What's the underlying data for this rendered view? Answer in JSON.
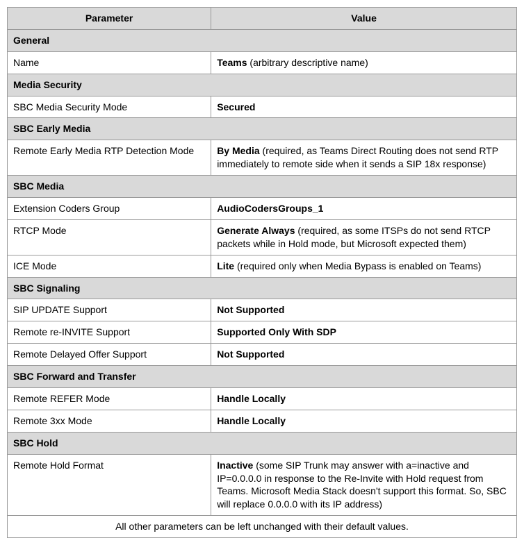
{
  "columns": {
    "param": "Parameter",
    "value": "Value"
  },
  "sections": [
    {
      "title": "General",
      "rows": [
        {
          "param": "Name",
          "value_bold": "Teams",
          "value_rest": " (arbitrary descriptive name)"
        }
      ]
    },
    {
      "title": "Media Security",
      "rows": [
        {
          "param": "SBC Media Security Mode",
          "value_bold": "Secured",
          "value_rest": ""
        }
      ]
    },
    {
      "title": "SBC Early Media",
      "rows": [
        {
          "param": "Remote Early Media RTP Detection Mode",
          "value_bold": "By Media",
          "value_rest": " (required, as Teams Direct Routing does not send RTP immediately to remote side when it sends a SIP 18x response)"
        }
      ]
    },
    {
      "title": "SBC Media",
      "rows": [
        {
          "param": "Extension Coders Group",
          "value_bold": "AudioCodersGroups_1",
          "value_rest": ""
        },
        {
          "param": "RTCP Mode",
          "value_bold": "Generate Always",
          "value_rest": " (required, as some ITSPs do not send RTCP packets while in Hold mode, but Microsoft expected them)"
        },
        {
          "param": "ICE Mode",
          "value_bold": "Lite",
          "value_rest": " (required only when Media Bypass is enabled on Teams)"
        }
      ]
    },
    {
      "title": "SBC Signaling",
      "rows": [
        {
          "param": "SIP UPDATE Support",
          "value_bold": "Not Supported",
          "value_rest": ""
        },
        {
          "param": "Remote re-INVITE Support",
          "value_bold": "Supported Only With SDP",
          "value_rest": ""
        },
        {
          "param": "Remote Delayed Offer Support",
          "value_bold": "Not Supported",
          "value_rest": ""
        }
      ]
    },
    {
      "title": "SBC Forward and Transfer",
      "rows": [
        {
          "param": "Remote REFER Mode",
          "value_bold": "Handle Locally",
          "value_rest": ""
        },
        {
          "param": "Remote 3xx Mode",
          "value_bold": "Handle Locally",
          "value_rest": ""
        }
      ]
    },
    {
      "title": "SBC Hold",
      "rows": [
        {
          "param": "Remote Hold Format",
          "value_bold": "Inactive",
          "value_rest": " (some SIP Trunk may answer with a=inactive and IP=0.0.0.0 in response to the Re-Invite with Hold request from Teams. Microsoft Media Stack doesn't support this format. So, SBC will replace 0.0.0.0 with its IP address)"
        }
      ]
    }
  ],
  "footer": "All other parameters can be left unchanged with their default values."
}
